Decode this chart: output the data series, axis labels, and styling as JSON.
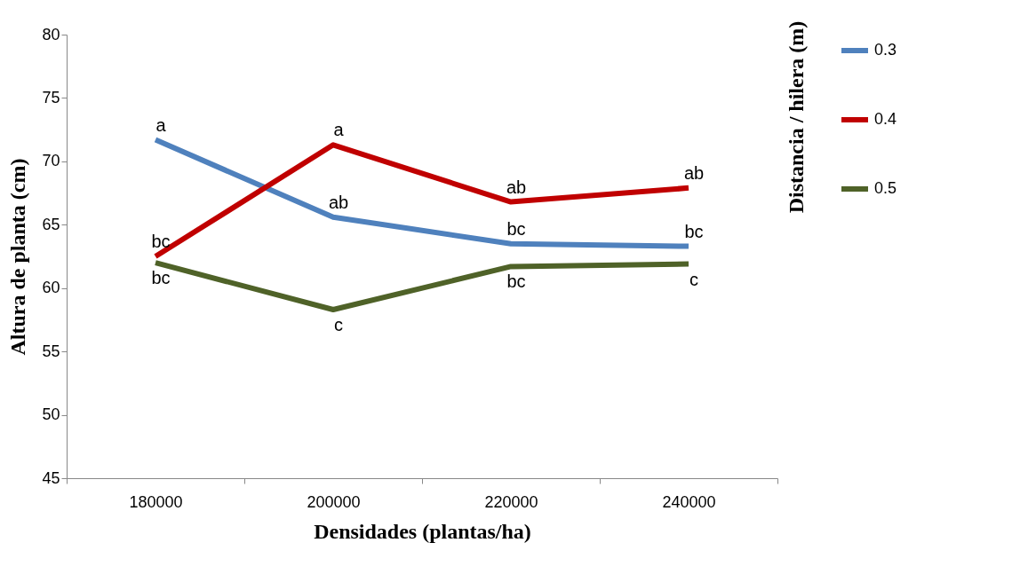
{
  "chart_data": {
    "type": "line",
    "xlabel": "Densidades  (plantas/ha)",
    "ylabel": "Altura de planta (cm)",
    "legend_title": "Distancia / hilera (m)",
    "categories": [
      "180000",
      "200000",
      "220000",
      "240000"
    ],
    "series": [
      {
        "name": "0.3",
        "color": "#4f81bd",
        "values": [
          71.7,
          65.6,
          63.5,
          63.3
        ]
      },
      {
        "name": "0.4",
        "color": "#c00000",
        "values": [
          62.5,
          71.3,
          66.8,
          67.9
        ]
      },
      {
        "name": "0.5",
        "color": "#4f6228",
        "values": [
          62.0,
          58.3,
          61.7,
          61.9
        ]
      }
    ],
    "ylim": [
      45,
      80
    ],
    "yticks": [
      45,
      50,
      55,
      60,
      65,
      70,
      75,
      80
    ],
    "grid": false,
    "legend": "right",
    "marker": "none",
    "line_style": "solid",
    "annotations": [
      {
        "text": "a",
        "x": "180000",
        "y": 71.7
      },
      {
        "text": "ab",
        "x": "200000",
        "y": 65.6
      },
      {
        "text": "bc",
        "x": "220000",
        "y": 63.5
      },
      {
        "text": "bc",
        "x": "240000",
        "y": 63.3
      },
      {
        "text": "bc",
        "x": "180000",
        "y": 62.5
      },
      {
        "text": "a",
        "x": "200000",
        "y": 71.3
      },
      {
        "text": "ab",
        "x": "220000",
        "y": 66.8
      },
      {
        "text": "ab",
        "x": "240000",
        "y": 67.9
      },
      {
        "text": "bc",
        "x": "180000",
        "y": 62.0
      },
      {
        "text": "c",
        "x": "200000",
        "y": 58.3
      },
      {
        "text": "bc",
        "x": "220000",
        "y": 61.7
      },
      {
        "text": "c",
        "x": "240000",
        "y": 61.9
      }
    ]
  }
}
